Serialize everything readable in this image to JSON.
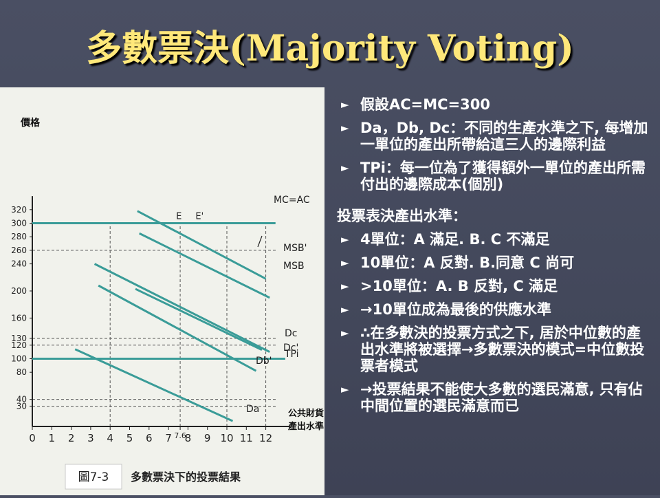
{
  "slide": {
    "title": "多數票決(Majority Voting)",
    "bullets_a": [
      "假設AC=MC=300",
      "Da，Db, Dc：不同的生產水準之下, 每增加一單位的產出所帶給這三人的邊際利益",
      "TPi：每一位為了獲得額外一單位的產出所需付出的邊際成本(個別)"
    ],
    "heading": "投票表決產出水準：",
    "bullets_b": [
      "4單位：A 滿足. B. C 不滿足",
      "10單位：A 反對. B.同意 C 尚可",
      ">10單位：A. B 反對, C 滿足",
      "→10單位成為最後的供應水準",
      "∴在多數決的投票方式之下, 居於中位數的產出水準將被選擇→多數票決的模式=中位數投票者模式",
      "→投票結果不能使大多數的選民滿意, 只有佔中間位置的選民滿意而已"
    ],
    "colors": {
      "title": "#ffe87a",
      "text": "#ffffff",
      "background": "#484c5f",
      "figure_bg": "#f1f2ec",
      "curve": "#3a9c98"
    }
  },
  "chart_data": {
    "type": "line",
    "ylabel": "價格",
    "xlabel": "公共財貨產出水準",
    "x_ticks": [
      "0",
      "1",
      "2",
      "3",
      "4",
      "5",
      "6",
      "7",
      "7.6",
      "8",
      "9",
      "10",
      "11",
      "12"
    ],
    "y_ticks": [
      "30",
      "40",
      "80",
      "100",
      "120",
      "130",
      "160",
      "200",
      "240",
      "260",
      "280",
      "300",
      "320"
    ],
    "caption_tag": "圖7-3",
    "caption_text": "多數票決下的投票結果",
    "series": [
      {
        "name": "MC=AC",
        "x": [
          0,
          12.5
        ],
        "y": [
          300,
          300
        ]
      },
      {
        "name": "TPi",
        "x": [
          0,
          13
        ],
        "y": [
          100,
          100
        ]
      },
      {
        "name": "MSB",
        "x": [
          5.5,
          12.2
        ],
        "y": [
          285,
          190
        ]
      },
      {
        "name": "MSB'",
        "x": [
          5.4,
          12
        ],
        "y": [
          318,
          218
        ]
      },
      {
        "name": "Dc",
        "x": [
          3.2,
          12.2
        ],
        "y": [
          240,
          110
        ]
      },
      {
        "name": "Dc'",
        "x": [
          5.3,
          11.8
        ],
        "y": [
          203,
          113
        ]
      },
      {
        "name": "Db'",
        "x": [
          3.4,
          11.5
        ],
        "y": [
          208,
          82
        ]
      },
      {
        "name": "Da",
        "x": [
          2.2,
          10.3
        ],
        "y": [
          114,
          8
        ]
      }
    ],
    "markers": [
      {
        "label": "E",
        "x": 7.6,
        "y": 300
      },
      {
        "label": "E'",
        "x": 8.6,
        "y": 300
      }
    ],
    "guides_y": [
      260,
      130,
      120,
      40,
      30
    ],
    "guides_x": [
      4,
      7.6,
      10,
      12
    ],
    "xlim": [
      0,
      12.8
    ],
    "ylim": [
      0,
      340
    ]
  }
}
